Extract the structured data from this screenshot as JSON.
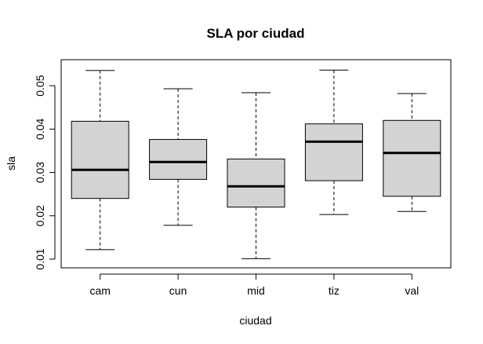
{
  "chart_data": {
    "type": "boxplot",
    "title": "SLA por ciudad",
    "xlabel": "ciudad",
    "ylabel": "sla",
    "ylim": [
      0.008,
      0.056
    ],
    "yticks": [
      0.01,
      0.02,
      0.03,
      0.04,
      0.05
    ],
    "ytick_labels": [
      "0.01",
      "0.02",
      "0.03",
      "0.04",
      "0.05"
    ],
    "grid": false,
    "box_fill": "#d3d3d3",
    "categories": [
      "cam",
      "cun",
      "mid",
      "tiz",
      "val"
    ],
    "boxes": [
      {
        "name": "cam",
        "min": 0.0122,
        "q1": 0.024,
        "median": 0.0306,
        "q3": 0.0418,
        "max": 0.0535
      },
      {
        "name": "cun",
        "min": 0.0178,
        "q1": 0.0284,
        "median": 0.0324,
        "q3": 0.0376,
        "max": 0.0493
      },
      {
        "name": "mid",
        "min": 0.0101,
        "q1": 0.022,
        "median": 0.0268,
        "q3": 0.0331,
        "max": 0.0484
      },
      {
        "name": "tiz",
        "min": 0.0203,
        "q1": 0.0281,
        "median": 0.0371,
        "q3": 0.0412,
        "max": 0.0536
      },
      {
        "name": "val",
        "min": 0.021,
        "q1": 0.0245,
        "median": 0.0345,
        "q3": 0.042,
        "max": 0.0482
      }
    ]
  }
}
